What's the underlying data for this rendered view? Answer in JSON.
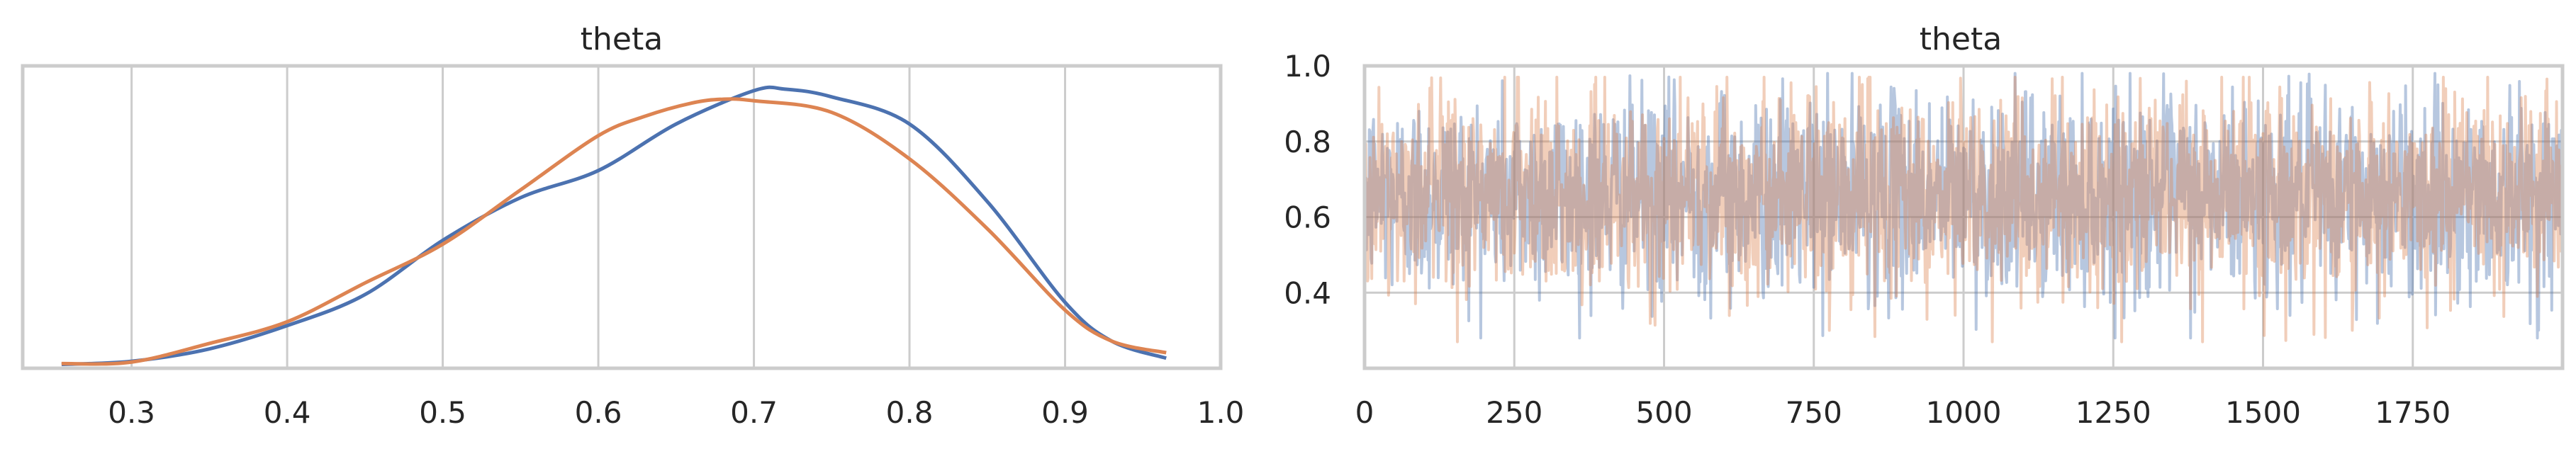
{
  "chart_data": [
    {
      "type": "line",
      "title": "theta",
      "xlabel": "",
      "ylabel": "",
      "xlim": [
        0.23,
        1.0
      ],
      "ylim": [
        0,
        3.9
      ],
      "xticks": [
        0.3,
        0.4,
        0.5,
        0.6,
        0.7,
        0.8,
        0.9,
        1.0
      ],
      "xtick_labels": [
        "0.3",
        "0.4",
        "0.5",
        "0.6",
        "0.7",
        "0.8",
        "0.9",
        "1.0"
      ],
      "grid": true,
      "legend": "none",
      "series": [
        {
          "color": "#4c72b0",
          "x": [
            0.255,
            0.3,
            0.35,
            0.4,
            0.45,
            0.5,
            0.55,
            0.6,
            0.65,
            0.7,
            0.72,
            0.75,
            0.8,
            0.85,
            0.9,
            0.93,
            0.965
          ],
          "y": [
            0.05,
            0.09,
            0.25,
            0.55,
            0.95,
            1.65,
            2.2,
            2.55,
            3.15,
            3.58,
            3.6,
            3.5,
            3.15,
            2.15,
            0.85,
            0.35,
            0.13
          ]
        },
        {
          "color": "#dd8452",
          "x": [
            0.255,
            0.3,
            0.35,
            0.4,
            0.45,
            0.5,
            0.55,
            0.6,
            0.63,
            0.66,
            0.68,
            0.7,
            0.75,
            0.8,
            0.85,
            0.9,
            0.93,
            0.965
          ],
          "y": [
            0.06,
            0.08,
            0.32,
            0.6,
            1.1,
            1.6,
            2.3,
            3.0,
            3.25,
            3.42,
            3.47,
            3.45,
            3.3,
            2.7,
            1.8,
            0.75,
            0.35,
            0.2
          ]
        }
      ]
    },
    {
      "type": "line",
      "title": "theta",
      "xlabel": "",
      "ylabel": "",
      "xlim": [
        0,
        2000
      ],
      "ylim": [
        0.2,
        1.0
      ],
      "xticks": [
        0,
        250,
        500,
        750,
        1000,
        1250,
        1500,
        1750
      ],
      "xtick_labels": [
        "0",
        "250",
        "500",
        "750",
        "1000",
        "1250",
        "1500",
        "1750"
      ],
      "yticks": [
        0.4,
        0.6,
        0.8,
        1.0
      ],
      "ytick_labels": [
        "0.4",
        "0.6",
        "0.8",
        "1.0"
      ],
      "grid": true,
      "legend": "none",
      "series": [
        {
          "color": "#4c72b0",
          "alpha": 0.4,
          "draws": 2000,
          "mean": 0.66,
          "sd": 0.13,
          "min": 0.28,
          "max": 0.98
        },
        {
          "color": "#dd8452",
          "alpha": 0.4,
          "draws": 2000,
          "mean": 0.66,
          "sd": 0.13,
          "min": 0.27,
          "max": 0.97
        }
      ]
    }
  ]
}
